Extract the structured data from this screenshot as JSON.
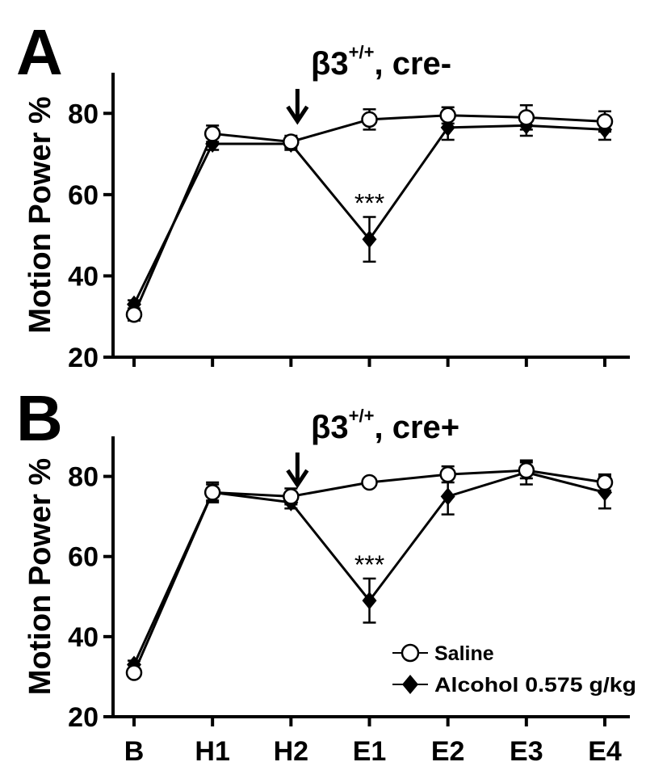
{
  "chart_data": [
    {
      "type": "line",
      "panel_label": "A",
      "title_main": "β3",
      "title_sup": "+/+",
      "title_rest": ", cre-",
      "ylabel": "Motion Power %",
      "ylim": [
        20,
        90
      ],
      "yticks": [
        "20",
        "40",
        "60",
        "80"
      ],
      "ytick_values": [
        20,
        40,
        60,
        80
      ],
      "categories": [
        "B",
        "H1",
        "H2",
        "E1",
        "E2",
        "E3",
        "E4"
      ],
      "arrow_at": "H2",
      "arrow_symbol": "↓",
      "significance": {
        "category": "E1",
        "label": "***"
      },
      "series": [
        {
          "name": "Saline",
          "marker": "circle-open",
          "values": [
            30.5,
            75,
            73,
            78.5,
            79.5,
            79,
            78
          ],
          "errors": [
            1.5,
            2,
            1.5,
            2.5,
            2,
            3,
            2.5
          ]
        },
        {
          "name": "Alcohol 0.575 g/kg",
          "marker": "diamond-filled",
          "values": [
            33,
            72.5,
            72.5,
            49,
            76.5,
            77,
            76
          ],
          "errors": [
            1,
            1.5,
            1.5,
            5.5,
            3,
            2.5,
            2.5
          ]
        }
      ]
    },
    {
      "type": "line",
      "panel_label": "B",
      "title_main": "β3",
      "title_sup": "+/+",
      "title_rest": ", cre+",
      "ylabel": "Motion Power %",
      "xlabels_visible": true,
      "ylim": [
        20,
        90
      ],
      "yticks": [
        "20",
        "40",
        "60",
        "80"
      ],
      "ytick_values": [
        20,
        40,
        60,
        80
      ],
      "categories": [
        "B",
        "H1",
        "H2",
        "E1",
        "E2",
        "E3",
        "E4"
      ],
      "arrow_at": "H2",
      "arrow_symbol": "↓",
      "significance": {
        "category": "E1",
        "label": "***"
      },
      "legend": {
        "position": "bottom-right",
        "entries": [
          "Saline",
          "Alcohol 0.575 g/kg"
        ]
      },
      "series": [
        {
          "name": "Saline",
          "marker": "circle-open",
          "values": [
            31,
            76,
            75,
            78.5,
            80.5,
            81.5,
            78.5
          ],
          "errors": [
            1,
            2,
            2,
            1,
            2,
            2,
            2
          ]
        },
        {
          "name": "Alcohol 0.575 g/kg",
          "marker": "diamond-filled",
          "values": [
            33,
            76,
            73.5,
            49,
            75,
            81,
            76
          ],
          "errors": [
            1,
            2.5,
            1.5,
            5.5,
            4.5,
            3,
            4
          ]
        }
      ]
    }
  ]
}
